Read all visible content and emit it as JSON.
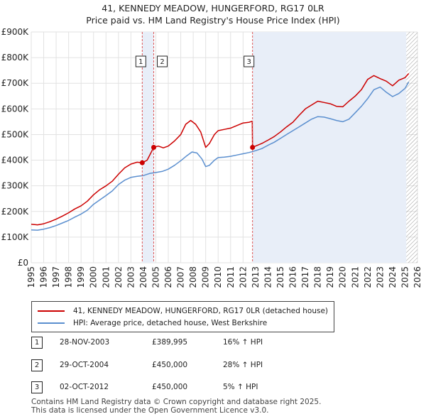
{
  "chart_data": {
    "type": "line",
    "title": "41, KENNEDY MEADOW, HUNGERFORD, RG17 0LR",
    "subtitle": "Price paid vs. HM Land Registry's House Price Index (HPI)",
    "xlabel": "",
    "ylabel": "",
    "xlim": [
      1995,
      2026
    ],
    "ylim": [
      0,
      900000
    ],
    "x_ticks": [
      "1995",
      "1996",
      "1997",
      "1998",
      "1999",
      "2000",
      "2001",
      "2002",
      "2003",
      "2004",
      "2005",
      "2006",
      "2007",
      "2008",
      "2009",
      "2010",
      "2011",
      "2012",
      "2013",
      "2014",
      "2015",
      "2016",
      "2017",
      "2018",
      "2019",
      "2020",
      "2021",
      "2022",
      "2023",
      "2024",
      "2025",
      "2026"
    ],
    "y_ticks": [
      {
        "value": 0,
        "label": "£0"
      },
      {
        "value": 100000,
        "label": "£100K"
      },
      {
        "value": 200000,
        "label": "£200K"
      },
      {
        "value": 300000,
        "label": "£300K"
      },
      {
        "value": 400000,
        "label": "£400K"
      },
      {
        "value": 500000,
        "label": "£500K"
      },
      {
        "value": 600000,
        "label": "£600K"
      },
      {
        "value": 700000,
        "label": "£700K"
      },
      {
        "value": 800000,
        "label": "£800K"
      },
      {
        "value": 900000,
        "label": "£900K"
      }
    ],
    "series": [
      {
        "name": "41, KENNEDY MEADOW, HUNGERFORD, RG17 0LR (detached house)",
        "color": "#cc0000",
        "x": [
          1995.0,
          1995.5,
          1996.0,
          1996.5,
          1997.0,
          1997.5,
          1998.0,
          1998.5,
          1999.0,
          1999.5,
          2000.0,
          2000.5,
          2001.0,
          2001.5,
          2002.0,
          2002.5,
          2003.0,
          2003.5,
          2003.91,
          2004.3,
          2004.83,
          2005.2,
          2005.6,
          2006.0,
          2006.5,
          2007.0,
          2007.4,
          2007.8,
          2008.2,
          2008.6,
          2009.0,
          2009.3,
          2009.7,
          2010.0,
          2010.5,
          2011.0,
          2011.5,
          2012.0,
          2012.5,
          2012.74,
          2012.76,
          2013.0,
          2013.5,
          2014.0,
          2014.5,
          2015.0,
          2015.5,
          2016.0,
          2016.5,
          2017.0,
          2017.5,
          2018.0,
          2018.5,
          2019.0,
          2019.5,
          2020.0,
          2020.5,
          2021.0,
          2021.5,
          2022.0,
          2022.5,
          2023.0,
          2023.5,
          2024.0,
          2024.5,
          2025.0,
          2025.3
        ],
        "values": [
          150000,
          148000,
          152000,
          160000,
          170000,
          182000,
          195000,
          210000,
          222000,
          240000,
          265000,
          285000,
          300000,
          318000,
          345000,
          370000,
          385000,
          392000,
          389995,
          400000,
          450000,
          455000,
          448000,
          455000,
          475000,
          500000,
          540000,
          555000,
          540000,
          510000,
          450000,
          465000,
          500000,
          515000,
          520000,
          525000,
          535000,
          545000,
          548000,
          552000,
          450000,
          455000,
          465000,
          478000,
          492000,
          510000,
          530000,
          548000,
          575000,
          600000,
          615000,
          630000,
          625000,
          620000,
          610000,
          608000,
          630000,
          650000,
          675000,
          715000,
          730000,
          718000,
          708000,
          690000,
          712000,
          722000,
          738000
        ]
      },
      {
        "name": "HPI: Average price, detached house, West Berkshire",
        "color": "#5b8fcf",
        "x": [
          1995.0,
          1995.5,
          1996.0,
          1996.5,
          1997.0,
          1997.5,
          1998.0,
          1998.5,
          1999.0,
          1999.5,
          2000.0,
          2000.5,
          2001.0,
          2001.5,
          2002.0,
          2002.5,
          2003.0,
          2003.5,
          2004.0,
          2004.5,
          2005.0,
          2005.5,
          2006.0,
          2006.5,
          2007.0,
          2007.5,
          2007.9,
          2008.3,
          2008.7,
          2009.0,
          2009.3,
          2009.7,
          2010.0,
          2010.5,
          2011.0,
          2011.5,
          2012.0,
          2012.5,
          2013.0,
          2013.5,
          2014.0,
          2014.5,
          2015.0,
          2015.5,
          2016.0,
          2016.5,
          2017.0,
          2017.5,
          2018.0,
          2018.5,
          2019.0,
          2019.5,
          2020.0,
          2020.5,
          2021.0,
          2021.5,
          2022.0,
          2022.5,
          2023.0,
          2023.5,
          2024.0,
          2024.5,
          2025.0,
          2025.3
        ],
        "values": [
          128000,
          127000,
          131000,
          137000,
          145000,
          155000,
          165000,
          178000,
          190000,
          205000,
          228000,
          245000,
          262000,
          280000,
          305000,
          322000,
          333000,
          337000,
          340000,
          348000,
          352000,
          356000,
          365000,
          380000,
          398000,
          418000,
          432000,
          428000,
          405000,
          375000,
          380000,
          400000,
          410000,
          412000,
          415000,
          420000,
          425000,
          430000,
          437000,
          445000,
          458000,
          470000,
          485000,
          500000,
          515000,
          530000,
          545000,
          560000,
          570000,
          568000,
          562000,
          555000,
          550000,
          560000,
          585000,
          610000,
          640000,
          675000,
          685000,
          665000,
          648000,
          660000,
          680000,
          705000
        ]
      }
    ],
    "transactions": [
      {
        "id": "1",
        "x": 2003.91,
        "price": 389995
      },
      {
        "id": "2",
        "x": 2004.83,
        "price": 450000
      },
      {
        "id": "3",
        "x": 2012.76,
        "price": 450000
      }
    ],
    "shaded_from": 2012.76,
    "hatch_from": 2025.1
  },
  "legend": [
    {
      "label": "41, KENNEDY MEADOW, HUNGERFORD, RG17 0LR (detached house)",
      "color": "#cc0000"
    },
    {
      "label": "HPI: Average price, detached house, West Berkshire",
      "color": "#5b8fcf"
    }
  ],
  "table": [
    {
      "num": "1",
      "date": "28-NOV-2003",
      "price": "£389,995",
      "hpi": "16% ↑ HPI"
    },
    {
      "num": "2",
      "date": "29-OCT-2004",
      "price": "£450,000",
      "hpi": "28% ↑ HPI"
    },
    {
      "num": "3",
      "date": "02-OCT-2012",
      "price": "£450,000",
      "hpi": "5% ↑ HPI"
    }
  ],
  "footer": {
    "line1": "Contains HM Land Registry data © Crown copyright and database right 2025.",
    "line2": "This data is licensed under the Open Government Licence v3.0."
  }
}
